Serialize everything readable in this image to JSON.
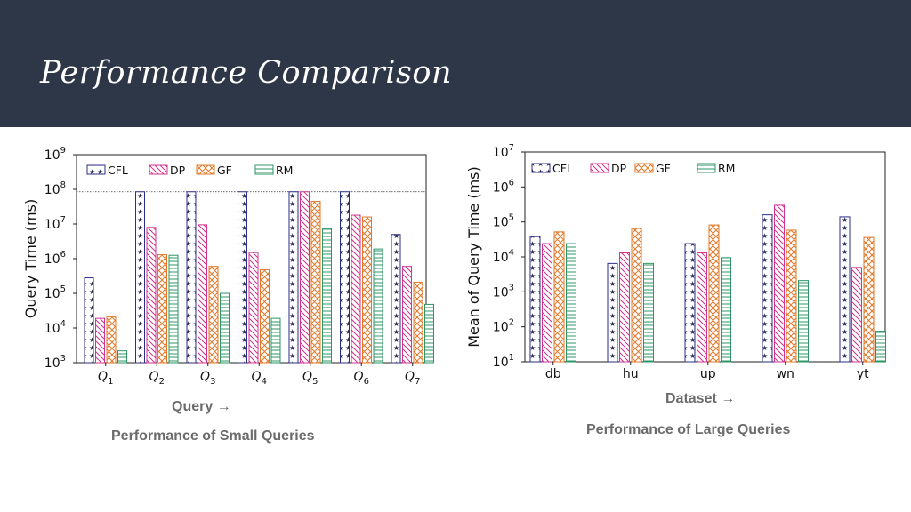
{
  "slide": {
    "title": "Performance Comparison",
    "left_caption": "Performance of Small Queries",
    "right_caption": "Performance of Large Queries"
  },
  "colors": {
    "CFL": "#2b2d8a",
    "DP": "#d0348f",
    "GF": "#e2792a",
    "RM": "#2e9467",
    "banner": "#2e3748"
  },
  "chart_data": [
    {
      "type": "bar",
      "xlabel": "Query →",
      "ylabel": "Query Time (ms)",
      "yscale": "log",
      "ylim": [
        1000,
        1000000000
      ],
      "y_ticks": [
        {
          "base": "10",
          "exp": "3"
        },
        {
          "base": "10",
          "exp": "4"
        },
        {
          "base": "10",
          "exp": "5"
        },
        {
          "base": "10",
          "exp": "6"
        },
        {
          "base": "10",
          "exp": "7"
        },
        {
          "base": "10",
          "exp": "8"
        },
        {
          "base": "10",
          "exp": "9"
        }
      ],
      "categories": [
        {
          "base": "Q",
          "sub": "1"
        },
        {
          "base": "Q",
          "sub": "2"
        },
        {
          "base": "Q",
          "sub": "3"
        },
        {
          "base": "Q",
          "sub": "4"
        },
        {
          "base": "Q",
          "sub": "5"
        },
        {
          "base": "Q",
          "sub": "6"
        },
        {
          "base": "Q",
          "sub": "7"
        }
      ],
      "reference_line": 85000000,
      "legend_position": "top-left",
      "series": [
        {
          "name": "CFL",
          "values": [
            280000,
            85000000,
            85000000,
            85000000,
            85000000,
            85000000,
            5000000
          ]
        },
        {
          "name": "DP",
          "values": [
            19000,
            8000000,
            9500000,
            1500000,
            85000000,
            18000000,
            600000
          ]
        },
        {
          "name": "GF",
          "values": [
            21000,
            1300000,
            600000,
            480000,
            45000000,
            16000000,
            210000
          ]
        },
        {
          "name": "RM",
          "values": [
            2200,
            1250000,
            100000,
            19000,
            7500000,
            1900000,
            48000
          ]
        }
      ]
    },
    {
      "type": "bar",
      "xlabel": "Dataset →",
      "ylabel": "Mean of Query Time (ms)",
      "yscale": "log",
      "ylim": [
        10,
        10000000
      ],
      "y_ticks": [
        {
          "base": "10",
          "exp": "1"
        },
        {
          "base": "10",
          "exp": "2"
        },
        {
          "base": "10",
          "exp": "3"
        },
        {
          "base": "10",
          "exp": "4"
        },
        {
          "base": "10",
          "exp": "5"
        },
        {
          "base": "10",
          "exp": "6"
        },
        {
          "base": "10",
          "exp": "7"
        }
      ],
      "categories": [
        {
          "base": "db",
          "sub": ""
        },
        {
          "base": "hu",
          "sub": ""
        },
        {
          "base": "up",
          "sub": ""
        },
        {
          "base": "wn",
          "sub": ""
        },
        {
          "base": "yt",
          "sub": ""
        }
      ],
      "legend_position": "top-left",
      "series": [
        {
          "name": "CFL",
          "values": [
            38000,
            6500,
            24000,
            160000,
            140000
          ]
        },
        {
          "name": "DP",
          "values": [
            24000,
            13000,
            13000,
            300000,
            5000
          ]
        },
        {
          "name": "GF",
          "values": [
            52000,
            65000,
            82000,
            58000,
            36000
          ]
        },
        {
          "name": "RM",
          "values": [
            24000,
            6500,
            9500,
            2100,
            75
          ]
        }
      ]
    }
  ]
}
